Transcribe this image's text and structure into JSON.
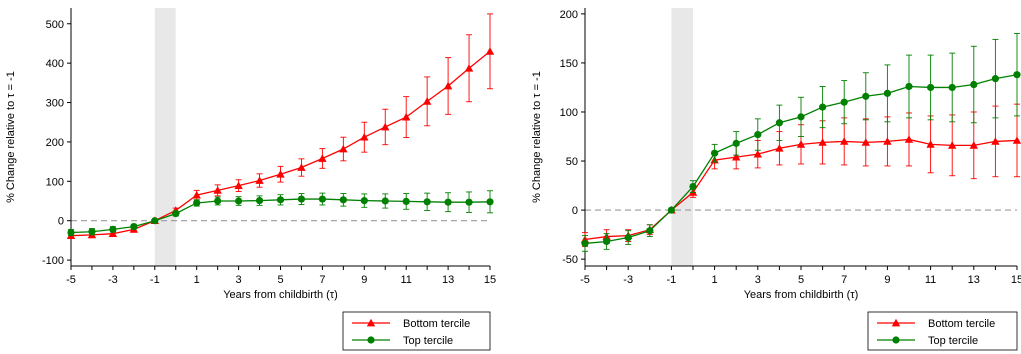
{
  "chart_data": [
    {
      "type": "line",
      "xlabel": "Years from childbirth (τ)",
      "ylabel": "% Change relative to τ = -1",
      "xlim": [
        -5,
        15
      ],
      "ylim": [
        -115,
        540
      ],
      "xticks": [
        "-5",
        "-3",
        "-1",
        "1",
        "3",
        "5",
        "7",
        "9",
        "11",
        "13",
        "15"
      ],
      "yticks": [
        -100,
        0,
        100,
        200,
        300,
        400,
        500
      ],
      "shaded_band": [
        -1,
        0
      ],
      "reference_line": 0,
      "x": [
        -5,
        -4,
        -3,
        -2,
        -1,
        0,
        1,
        2,
        3,
        4,
        5,
        6,
        7,
        8,
        9,
        10,
        11,
        12,
        13,
        14,
        15
      ],
      "series": [
        {
          "name": "Bottom tercile",
          "color": "#ff0000",
          "marker": "triangle",
          "values": [
            -38,
            -36,
            -33,
            -22,
            0,
            26,
            65,
            77,
            89,
            102,
            118,
            135,
            158,
            182,
            212,
            238,
            263,
            303,
            342,
            387,
            430
          ],
          "err": [
            7,
            7,
            6,
            5,
            0,
            6,
            12,
            14,
            15,
            17,
            20,
            22,
            25,
            30,
            38,
            45,
            52,
            62,
            72,
            85,
            95
          ]
        },
        {
          "name": "Top tercile",
          "color": "#008000",
          "marker": "circle",
          "values": [
            -30,
            -28,
            -22,
            -15,
            0,
            18,
            45,
            50,
            50,
            51,
            53,
            55,
            55,
            53,
            51,
            50,
            49,
            48,
            47,
            47,
            48
          ],
          "err": [
            8,
            8,
            7,
            6,
            0,
            6,
            8,
            10,
            11,
            12,
            13,
            14,
            15,
            16,
            17,
            18,
            20,
            22,
            24,
            26,
            28
          ]
        }
      ]
    },
    {
      "type": "line",
      "xlabel": "Years from childbirth (τ)",
      "ylabel": "% Change relative to τ = -1",
      "xlim": [
        -5,
        15
      ],
      "ylim": [
        -57,
        206
      ],
      "xticks": [
        "-5",
        "-3",
        "-1",
        "1",
        "3",
        "5",
        "7",
        "9",
        "11",
        "13",
        "15"
      ],
      "yticks": [
        -50,
        0,
        50,
        100,
        150,
        200
      ],
      "shaded_band": [
        -1,
        0
      ],
      "reference_line": 0,
      "x": [
        -5,
        -4,
        -3,
        -2,
        -1,
        0,
        1,
        2,
        3,
        4,
        5,
        6,
        7,
        8,
        9,
        10,
        11,
        12,
        13,
        14,
        15
      ],
      "series": [
        {
          "name": "Bottom tercile",
          "color": "#ff0000",
          "marker": "triangle",
          "values": [
            -30,
            -27,
            -26,
            -20,
            0,
            18,
            51,
            54,
            57,
            63,
            67,
            69,
            70,
            69,
            70,
            72,
            67,
            66,
            66,
            70,
            71
          ],
          "err": [
            7,
            7,
            6,
            5,
            0,
            5,
            9,
            12,
            14,
            17,
            20,
            22,
            24,
            24,
            25,
            27,
            29,
            31,
            34,
            36,
            37
          ]
        },
        {
          "name": "Top tercile",
          "color": "#008000",
          "marker": "circle",
          "values": [
            -34,
            -32,
            -28,
            -21,
            0,
            24,
            58,
            68,
            77,
            89,
            95,
            105,
            110,
            116,
            119,
            126,
            125,
            125,
            128,
            134,
            138
          ]
        }
      ],
      "top_err": [
        8,
        8,
        7,
        6,
        0,
        6,
        9,
        12,
        16,
        18,
        20,
        21,
        22,
        24,
        29,
        32,
        33,
        35,
        39,
        40,
        42
      ]
    }
  ],
  "legend": {
    "items": [
      {
        "label": "Bottom tercile"
      },
      {
        "label": "Top tercile"
      }
    ]
  }
}
